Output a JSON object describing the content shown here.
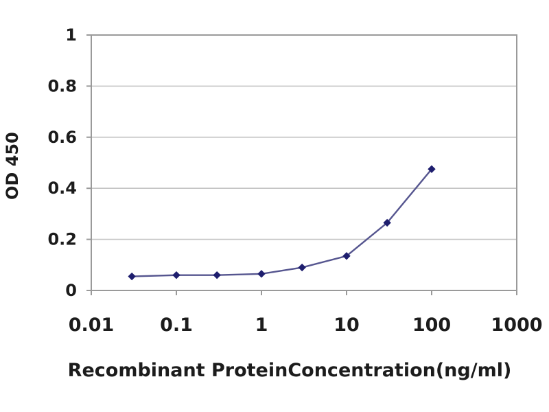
{
  "chart_data": {
    "type": "line",
    "title": "",
    "xlabel": "Recombinant ProteinConcentration(ng/ml)",
    "ylabel": "OD 450",
    "x_scale": "log",
    "xlim": [
      0.01,
      1000
    ],
    "ylim": [
      0,
      1
    ],
    "x_ticks": [
      0.01,
      0.1,
      1,
      10,
      100,
      1000
    ],
    "x_tick_labels": [
      "0.01",
      "0.1",
      "1",
      "10",
      "100",
      "1000"
    ],
    "y_ticks": [
      0,
      0.2,
      0.4,
      0.6,
      0.8,
      1
    ],
    "y_tick_labels": [
      "0",
      "0.2",
      "0.4",
      "0.6",
      "0.8",
      "1"
    ],
    "grid": "horizontal-only",
    "legend": "none",
    "series": [
      {
        "name": "OD 450",
        "marker": "diamond",
        "x": [
          0.03,
          0.1,
          0.3,
          1,
          3,
          10,
          30,
          100
        ],
        "y": [
          0.055,
          0.06,
          0.06,
          0.065,
          0.09,
          0.135,
          0.265,
          0.475
        ]
      }
    ],
    "colors": {
      "line": "#55558f",
      "marker": "#1e1e6e",
      "gridline": "#c4c4c4",
      "plot_border": "#9a9a9a",
      "tick": "#9a9a9a",
      "text": "#1c1c1c",
      "plot_background": "#ffffff"
    }
  }
}
